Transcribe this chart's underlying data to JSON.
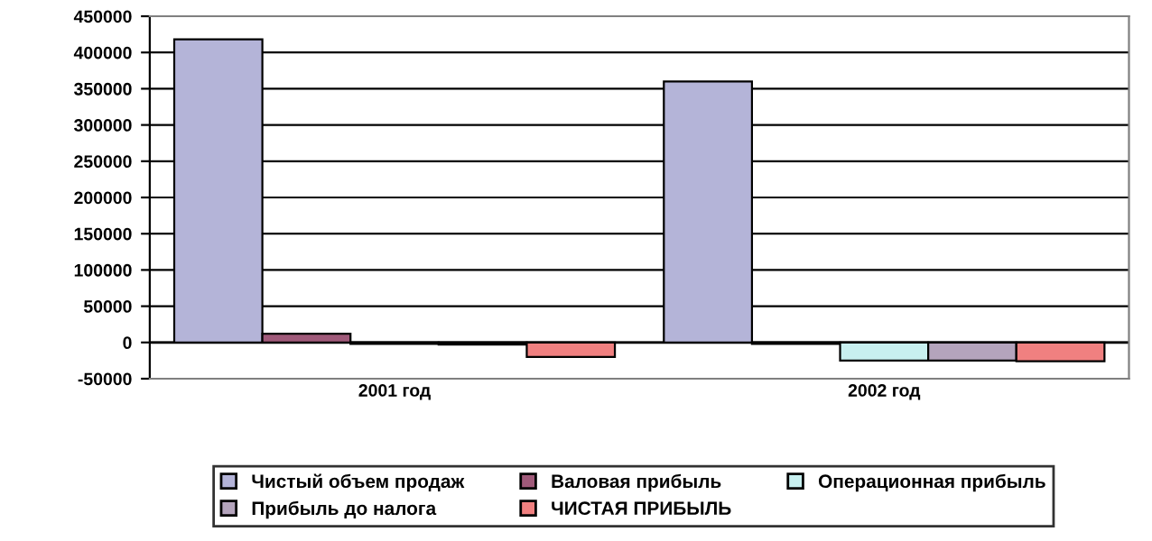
{
  "chart_data": {
    "type": "bar",
    "categories": [
      "2001 год",
      "2002 год"
    ],
    "series": [
      {
        "name": "Чистый объем продаж",
        "color": "#b4b4d8",
        "values": [
          418000,
          360000
        ]
      },
      {
        "name": "Валовая прибыль",
        "color": "#a05a7a",
        "values": [
          12000,
          -2000
        ]
      },
      {
        "name": "Операционная прибыль",
        "color": "#c8f0f0",
        "values": [
          -2000,
          -25000
        ]
      },
      {
        "name": "Прибыль до налога",
        "color": "#b4a4bc",
        "values": [
          -3000,
          -25000
        ]
      },
      {
        "name": "ЧИСТАЯ ПРИБЫЛЬ",
        "color": "#f08080",
        "values": [
          -20000,
          -26000
        ]
      }
    ],
    "ylim": [
      -50000,
      450000
    ],
    "yticks": [
      -50000,
      0,
      50000,
      100000,
      150000,
      200000,
      250000,
      300000,
      350000,
      400000,
      450000
    ],
    "grid": "y",
    "legend": "bottom"
  }
}
